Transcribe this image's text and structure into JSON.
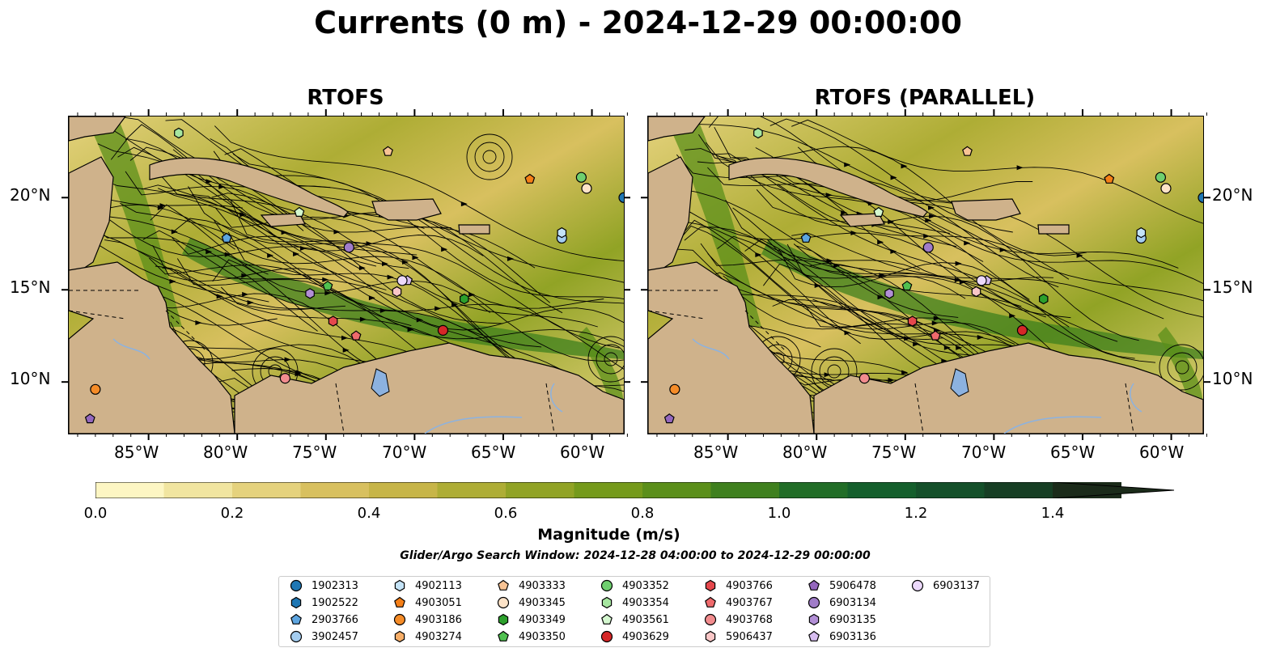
{
  "title": "Currents (0 m) - 2024-12-29 00:00:00",
  "panels": [
    {
      "title": "RTOFS"
    },
    {
      "title": "RTOFS (PARALLEL)"
    }
  ],
  "lon_ticks": [
    "85°W",
    "80°W",
    "75°W",
    "70°W",
    "65°W",
    "60°W"
  ],
  "lat_ticks": [
    "20°N",
    "15°N",
    "10°N"
  ],
  "map_extent": {
    "lon": [
      -89.5,
      -58.2
    ],
    "lat": [
      7.2,
      24.4
    ]
  },
  "colorbar": {
    "label": "Magnitude (m/s)",
    "ticks": [
      "0.0",
      "0.2",
      "0.4",
      "0.6",
      "0.8",
      "1.0",
      "1.2",
      "1.4"
    ],
    "levels": [
      0,
      0.1,
      0.2,
      0.3,
      0.4,
      0.5,
      0.6,
      0.7,
      0.8,
      0.9,
      1.0,
      1.1,
      1.2,
      1.3,
      1.4,
      1.5
    ],
    "colors": [
      "#fdf6c3",
      "#f1e5a0",
      "#e5d27d",
      "#d8c05f",
      "#c7b548",
      "#aead35",
      "#91a325",
      "#759a1b",
      "#5b8f1a",
      "#3f801e",
      "#216d27",
      "#145f2c",
      "#14502a",
      "#163e24",
      "#1b2b1a"
    ],
    "extend": "max"
  },
  "search_window": "Glider/Argo Search Window: 2024-12-28 04:00:00 to 2024-12-29 00:00:00",
  "colors": {
    "land": "#cfb28b",
    "lake": "#8cb2e0",
    "coast": "#000000"
  },
  "platforms": [
    {
      "id": "1902313",
      "marker": "circle",
      "color": "#1f77b4",
      "lon": -58.2,
      "lat": 20.0
    },
    {
      "id": "1902522",
      "marker": "hexagon",
      "color": "#1f77b4",
      "lon": null,
      "lat": null
    },
    {
      "id": "2903766",
      "marker": "pentagon",
      "color": "#5da5e0",
      "lon": -80.6,
      "lat": 17.8
    },
    {
      "id": "3902457",
      "marker": "circle",
      "color": "#a4cdf0",
      "lon": -61.7,
      "lat": 17.8
    },
    {
      "id": "4902113",
      "marker": "hexagon",
      "color": "#c4e3f7",
      "lon": -61.7,
      "lat": 18.1
    },
    {
      "id": "4903051",
      "marker": "pentagon",
      "color": "#f57f17",
      "lon": -63.5,
      "lat": 21.0
    },
    {
      "id": "4903186",
      "marker": "circle",
      "color": "#f58c28",
      "lon": -88.0,
      "lat": 9.6
    },
    {
      "id": "4903274",
      "marker": "hexagon",
      "color": "#f7ae68",
      "lon": null,
      "lat": null
    },
    {
      "id": "4903333",
      "marker": "pentagon",
      "color": "#f8c394",
      "lon": -71.5,
      "lat": 22.5
    },
    {
      "id": "4903345",
      "marker": "circle",
      "color": "#fde3c8",
      "lon": -60.3,
      "lat": 20.5
    },
    {
      "id": "4903349",
      "marker": "hexagon",
      "color": "#2ca02c",
      "lon": -67.2,
      "lat": 14.5
    },
    {
      "id": "4903350",
      "marker": "pentagon",
      "color": "#50c050",
      "lon": -74.9,
      "lat": 15.2
    },
    {
      "id": "4903352",
      "marker": "circle",
      "color": "#6fcf6f",
      "lon": -60.6,
      "lat": 21.1
    },
    {
      "id": "4903354",
      "marker": "hexagon",
      "color": "#a6e6a0",
      "lon": -83.3,
      "lat": 23.5
    },
    {
      "id": "4903561",
      "marker": "pentagon",
      "color": "#d4f7cf",
      "lon": -76.5,
      "lat": 19.2
    },
    {
      "id": "4903629",
      "marker": "circle",
      "color": "#d62728",
      "lon": -68.4,
      "lat": 12.8
    },
    {
      "id": "4903766",
      "marker": "hexagon",
      "color": "#e5484d",
      "lon": -74.6,
      "lat": 13.3
    },
    {
      "id": "4903767",
      "marker": "pentagon",
      "color": "#ef6a6c",
      "lon": -73.3,
      "lat": 12.5
    },
    {
      "id": "4903768",
      "marker": "circle",
      "color": "#f28c8e",
      "lon": -77.3,
      "lat": 10.2
    },
    {
      "id": "5906437",
      "marker": "hexagon",
      "color": "#f9c6c6",
      "lon": -71.0,
      "lat": 14.9
    },
    {
      "id": "5906478",
      "marker": "pentagon",
      "color": "#9467bd",
      "lon": -88.3,
      "lat": 8.0
    },
    {
      "id": "6903134",
      "marker": "circle",
      "color": "#a07cc8",
      "lon": -73.7,
      "lat": 17.3
    },
    {
      "id": "6903135",
      "marker": "hexagon",
      "color": "#b28fd6",
      "lon": -75.9,
      "lat": 14.8
    },
    {
      "id": "6903136",
      "marker": "pentagon",
      "color": "#d7bdf0",
      "lon": -70.4,
      "lat": 15.5
    },
    {
      "id": "6903137",
      "marker": "circle",
      "color": "#ecd9fb",
      "lon": -70.7,
      "lat": 15.5
    }
  ]
}
